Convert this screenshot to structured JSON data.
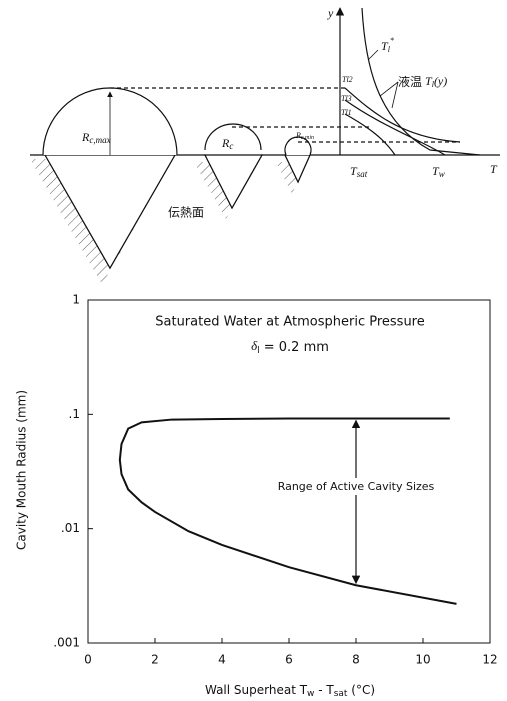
{
  "diagram": {
    "y_axis": "y",
    "t_l_star": {
      "main": "T",
      "sub": "l",
      "sup": "*"
    },
    "liquid_temp": {
      "prefix": "液温",
      "main": "T",
      "sub": "l",
      "suffix": "(y)"
    },
    "t_l2": "Tl2",
    "t_l3": "Tl3",
    "t_l1": "Tl1",
    "r_c_max": {
      "main": "R",
      "sub": "c,max"
    },
    "r_c": {
      "main": "R",
      "sub": "c"
    },
    "r_c_min": {
      "main": "R",
      "sub": "c,min"
    },
    "t_sat": {
      "main": "T",
      "sub": "sat"
    },
    "t_w": {
      "main": "T",
      "sub": "w"
    },
    "t_axis": "T",
    "surface": "伝熱面"
  },
  "chart_data": {
    "type": "line",
    "annotations": [
      "Saturated Water at Atmospheric Pressure",
      {
        "symbol": "δ",
        "sub": "l",
        "rest": " = 0.2  mm"
      },
      "Range of Active Cavity Sizes"
    ],
    "x_label": {
      "main": "Wall Superheat T",
      "sub1": "w",
      "mid": " - T",
      "sub2": "sat",
      "unit": "   (°C)"
    },
    "y_label": "Cavity Mouth Radius (mm)",
    "xlim": [
      0,
      12
    ],
    "xticks": [
      0,
      2,
      4,
      6,
      8,
      10,
      12
    ],
    "ylim": [
      0.001,
      1
    ],
    "log_y": true,
    "yticks": [
      {
        "value": 0.001,
        "label": ".001"
      },
      {
        "value": 0.01,
        "label": ".01"
      },
      {
        "value": 0.1,
        "label": ".1"
      },
      1
    ],
    "series": [
      {
        "color": "#111111",
        "x": [
          10.8,
          8,
          6,
          4,
          2.5,
          1.6,
          1.2,
          1.0,
          0.95,
          1.0,
          1.2,
          1.6,
          2,
          3,
          4,
          6,
          8,
          11
        ],
        "values": [
          0.092,
          0.092,
          0.092,
          0.091,
          0.09,
          0.085,
          0.075,
          0.055,
          0.04,
          0.03,
          0.022,
          0.017,
          0.014,
          0.0095,
          0.0072,
          0.0046,
          0.0032,
          0.0022
        ]
      }
    ]
  }
}
